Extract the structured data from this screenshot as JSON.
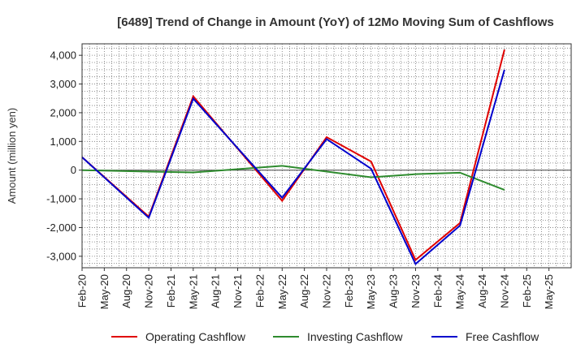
{
  "chart_data": {
    "type": "line",
    "title": "[6489]  Trend of Change in Amount (YoY) of 12Mo Moving Sum of Cashflows",
    "ylabel": "Amount (million yen)",
    "xlabel": "",
    "ylim": [
      -3400,
      4400
    ],
    "yticks": [
      4000,
      3000,
      2000,
      1000,
      0,
      -1000,
      -2000,
      -3000
    ],
    "ytick_labels": [
      "4,000",
      "3,000",
      "2,000",
      "1,000",
      "0",
      "-1,000",
      "-2,000",
      "-3,000"
    ],
    "categories": [
      "Feb-20",
      "May-20",
      "Aug-20",
      "Nov-20",
      "Feb-21",
      "May-21",
      "Aug-21",
      "Nov-21",
      "Feb-22",
      "May-22",
      "Aug-22",
      "Nov-22",
      "Feb-23",
      "May-23",
      "Aug-23",
      "Nov-23",
      "Feb-24",
      "May-24",
      "Aug-24",
      "Nov-24",
      "Feb-25",
      "May-25"
    ],
    "grid": true,
    "legend_position": "bottom",
    "series": [
      {
        "name": "Operating Cashflow",
        "color": "#e00000",
        "values": [
          450,
          null,
          null,
          -1620,
          null,
          2570,
          null,
          null,
          null,
          -1070,
          null,
          1150,
          null,
          300,
          null,
          -3130,
          null,
          -1840,
          null,
          4200,
          null,
          null
        ]
      },
      {
        "name": "Investing Cashflow",
        "color": "#2e8b2e",
        "values": [
          0,
          null,
          null,
          -50,
          null,
          -80,
          null,
          null,
          null,
          150,
          null,
          null,
          null,
          -250,
          null,
          -140,
          null,
          -90,
          null,
          -690,
          null,
          null
        ]
      },
      {
        "name": "Free Cashflow",
        "color": "#0000cc",
        "values": [
          450,
          null,
          null,
          -1660,
          null,
          2490,
          null,
          null,
          null,
          -960,
          null,
          1080,
          null,
          50,
          null,
          -3270,
          null,
          -1930,
          null,
          3500,
          null,
          null
        ]
      }
    ]
  }
}
